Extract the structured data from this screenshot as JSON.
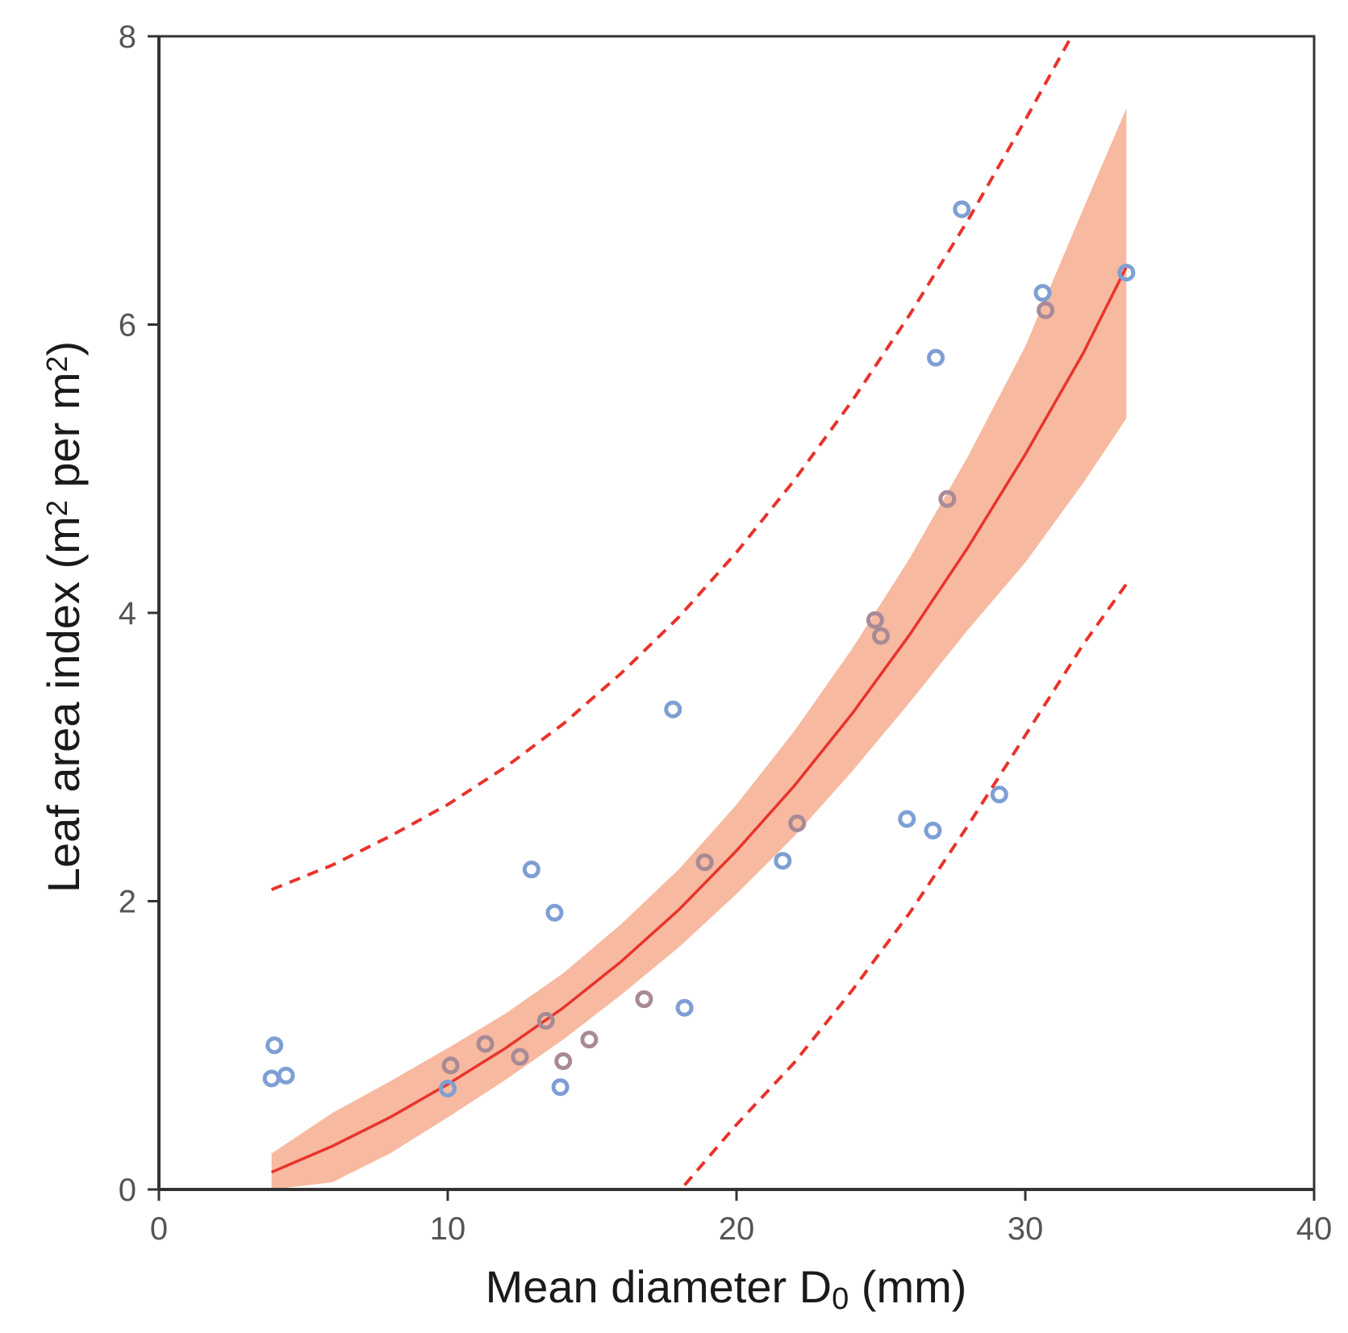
{
  "chart_data": {
    "type": "scatter",
    "title": "",
    "xlabel": {
      "main": "Mean diameter D",
      "sub": "0",
      "unit": " (mm)"
    },
    "ylabel": {
      "main": "Leaf area index (m",
      "sup1": "2",
      "mid": " per m",
      "sup2": "2",
      "end": ")"
    },
    "xlim": [
      0,
      40
    ],
    "ylim": [
      0,
      8
    ],
    "xticks": [
      "0",
      "10",
      "20",
      "30",
      "40"
    ],
    "yticks": [
      "0",
      "2",
      "4",
      "6",
      "8"
    ],
    "grid": false,
    "legend": "none",
    "colors": {
      "points_blue": "#7e9fd4",
      "points_mauve": "#a88a96",
      "fit_line": "#e8332b",
      "ci_band": "#f7b9a0",
      "prediction": "#e8332b",
      "axes": "#333333"
    },
    "fit": {
      "x": [
        3.9,
        6,
        8,
        10,
        12,
        14,
        16,
        18,
        20,
        22,
        24,
        26,
        28,
        30,
        32,
        33.5
      ],
      "y": [
        0.12,
        0.3,
        0.5,
        0.73,
        0.98,
        1.26,
        1.58,
        1.94,
        2.35,
        2.8,
        3.3,
        3.85,
        4.45,
        5.1,
        5.8,
        6.4
      ]
    },
    "confidence_band": {
      "x": [
        3.9,
        6,
        8,
        10,
        12,
        14,
        16,
        18,
        20,
        22,
        24,
        26,
        28,
        30,
        32,
        33.5
      ],
      "lower": [
        0.0,
        0.05,
        0.25,
        0.5,
        0.76,
        1.04,
        1.35,
        1.68,
        2.05,
        2.45,
        2.9,
        3.38,
        3.88,
        4.35,
        4.9,
        5.35
      ],
      "upper": [
        0.25,
        0.53,
        0.75,
        0.98,
        1.22,
        1.5,
        1.84,
        2.22,
        2.67,
        3.18,
        3.75,
        4.38,
        5.08,
        5.85,
        6.8,
        7.5
      ]
    },
    "prediction_upper": {
      "x": [
        3.9,
        6,
        8,
        10,
        12,
        14,
        16,
        18,
        20,
        22,
        24,
        26,
        28,
        30,
        31.6
      ],
      "y": [
        2.08,
        2.25,
        2.45,
        2.67,
        2.93,
        3.23,
        3.58,
        3.97,
        4.42,
        4.92,
        5.47,
        6.07,
        6.72,
        7.42,
        8.0
      ]
    },
    "prediction_lower": {
      "x": [
        18.2,
        20,
        22,
        24,
        26,
        28,
        30,
        32,
        33.5
      ],
      "y": [
        0.03,
        0.45,
        0.88,
        1.38,
        1.92,
        2.52,
        3.15,
        3.78,
        4.2
      ]
    },
    "series": [
      {
        "color": "blue",
        "x": [
          4.0,
          3.9,
          4.4,
          10.0,
          12.9,
          13.7,
          13.9,
          17.8,
          18.2,
          21.6,
          25.9,
          26.8,
          26.9,
          27.8,
          29.1,
          30.6,
          33.5
        ],
        "y": [
          1.0,
          0.77,
          0.79,
          0.7,
          2.22,
          1.92,
          0.71,
          3.33,
          1.26,
          2.28,
          2.57,
          2.49,
          5.77,
          6.8,
          2.74,
          6.22,
          6.36
        ]
      },
      {
        "color": "mauve",
        "x": [
          10.1,
          11.3,
          12.5,
          13.4,
          14.0,
          14.9,
          16.8,
          18.9,
          22.1,
          24.8,
          25.0,
          27.3,
          30.7
        ],
        "y": [
          0.86,
          1.01,
          0.92,
          1.17,
          0.89,
          1.04,
          1.32,
          2.27,
          2.54,
          3.95,
          3.84,
          4.79,
          6.1
        ]
      }
    ]
  }
}
